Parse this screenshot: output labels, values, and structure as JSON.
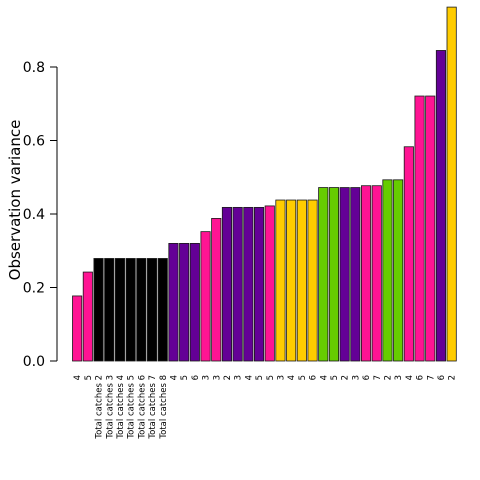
{
  "chart_data": {
    "type": "bar",
    "title": "",
    "xlabel": "",
    "ylabel": "Observation variance",
    "ylim": [
      0,
      0.96
    ],
    "yticks": [
      0.0,
      0.2,
      0.4,
      0.6,
      0.8
    ],
    "ytick_labels": [
      "0.0",
      "0.2",
      "0.4",
      "0.6",
      "0.8"
    ],
    "grid": false,
    "legend": "none",
    "categories": [
      "4",
      "5",
      "Total catches 2",
      "Total catches 3",
      "Total catches 4",
      "Total catches 5",
      "Total catches 6",
      "Total catches 7",
      "Total catches 8",
      "4",
      "5",
      "6",
      "3",
      "3",
      "2",
      "3",
      "4",
      "5",
      "5",
      "3",
      "4",
      "5",
      "6",
      "4",
      "5",
      "2",
      "3",
      "6",
      "7",
      "2",
      "3",
      "4",
      "6",
      "7",
      "6",
      "2"
    ],
    "values": [
      0.177,
      0.242,
      0.279,
      0.279,
      0.279,
      0.279,
      0.279,
      0.279,
      0.279,
      0.32,
      0.32,
      0.32,
      0.352,
      0.388,
      0.418,
      0.418,
      0.418,
      0.418,
      0.422,
      0.438,
      0.438,
      0.438,
      0.438,
      0.472,
      0.472,
      0.472,
      0.472,
      0.477,
      0.477,
      0.493,
      0.493,
      0.583,
      0.721,
      0.721,
      0.845,
      0.963
    ],
    "colors": [
      "#ff1493",
      "#ff1493",
      "#000000",
      "#000000",
      "#000000",
      "#000000",
      "#000000",
      "#000000",
      "#000000",
      "#640096",
      "#640096",
      "#640096",
      "#ff1493",
      "#ff1493",
      "#640096",
      "#640096",
      "#640096",
      "#640096",
      "#ff1493",
      "#ffcc00",
      "#ffcc00",
      "#ffcc00",
      "#ffcc00",
      "#66cc00",
      "#66cc00",
      "#640096",
      "#640096",
      "#ff1493",
      "#ff1493",
      "#66cc00",
      "#66cc00",
      "#ff1493",
      "#ff1493",
      "#ff1493",
      "#640096",
      "#ffcc00"
    ]
  }
}
